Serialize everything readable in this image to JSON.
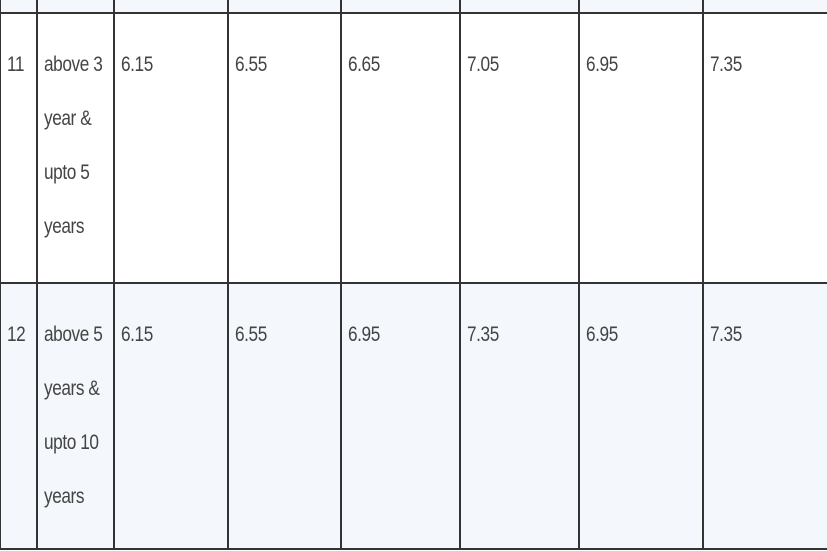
{
  "table": {
    "rows": [
      {
        "sno": "11",
        "period": [
          "above 3",
          "year &",
          "upto 5",
          "years"
        ],
        "rates": [
          "6.15",
          "6.55",
          "6.65",
          "7.05",
          "6.95",
          "7.35"
        ]
      },
      {
        "sno": "12",
        "period": [
          "above 5",
          "years &",
          "upto 10",
          "years"
        ],
        "rates": [
          "6.15",
          "6.55",
          "6.95",
          "7.35",
          "6.95",
          "7.35"
        ]
      }
    ]
  }
}
